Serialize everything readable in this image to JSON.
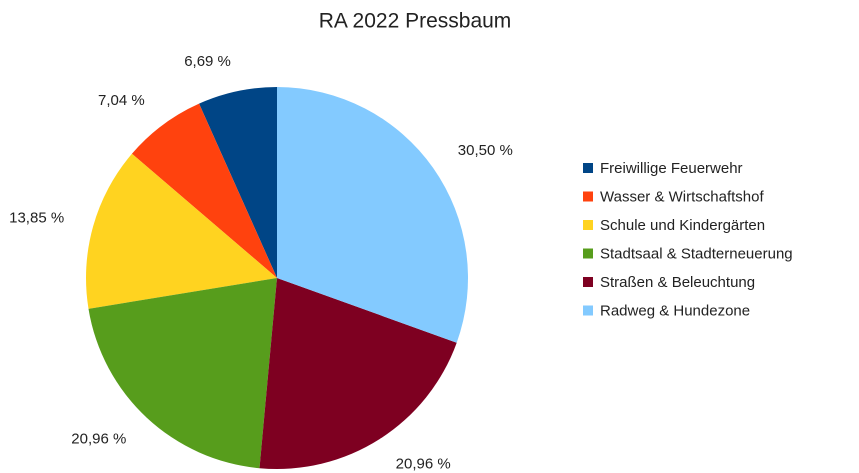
{
  "chart_data": {
    "type": "pie",
    "title": "RA 2022 Pressbaum",
    "categories": [
      "Freiwillige Feuerwehr",
      "Wasser & Wirtschaftshof",
      "Schule und Kindergärten",
      "Stadtsaal & Stadterneuerung",
      "Straßen & Beleuchtung",
      "Radweg & Hundezone"
    ],
    "values": [
      6.69,
      7.04,
      13.85,
      20.96,
      20.96,
      30.5
    ],
    "value_labels": [
      "6,69 %",
      "7,04 %",
      "13,85 %",
      "20,96 %",
      "20,96 %",
      "30,50 %"
    ],
    "colors": [
      "#004586",
      "#ff420e",
      "#ffd320",
      "#579d1c",
      "#7e0021",
      "#83caff"
    ],
    "legend": "right"
  }
}
